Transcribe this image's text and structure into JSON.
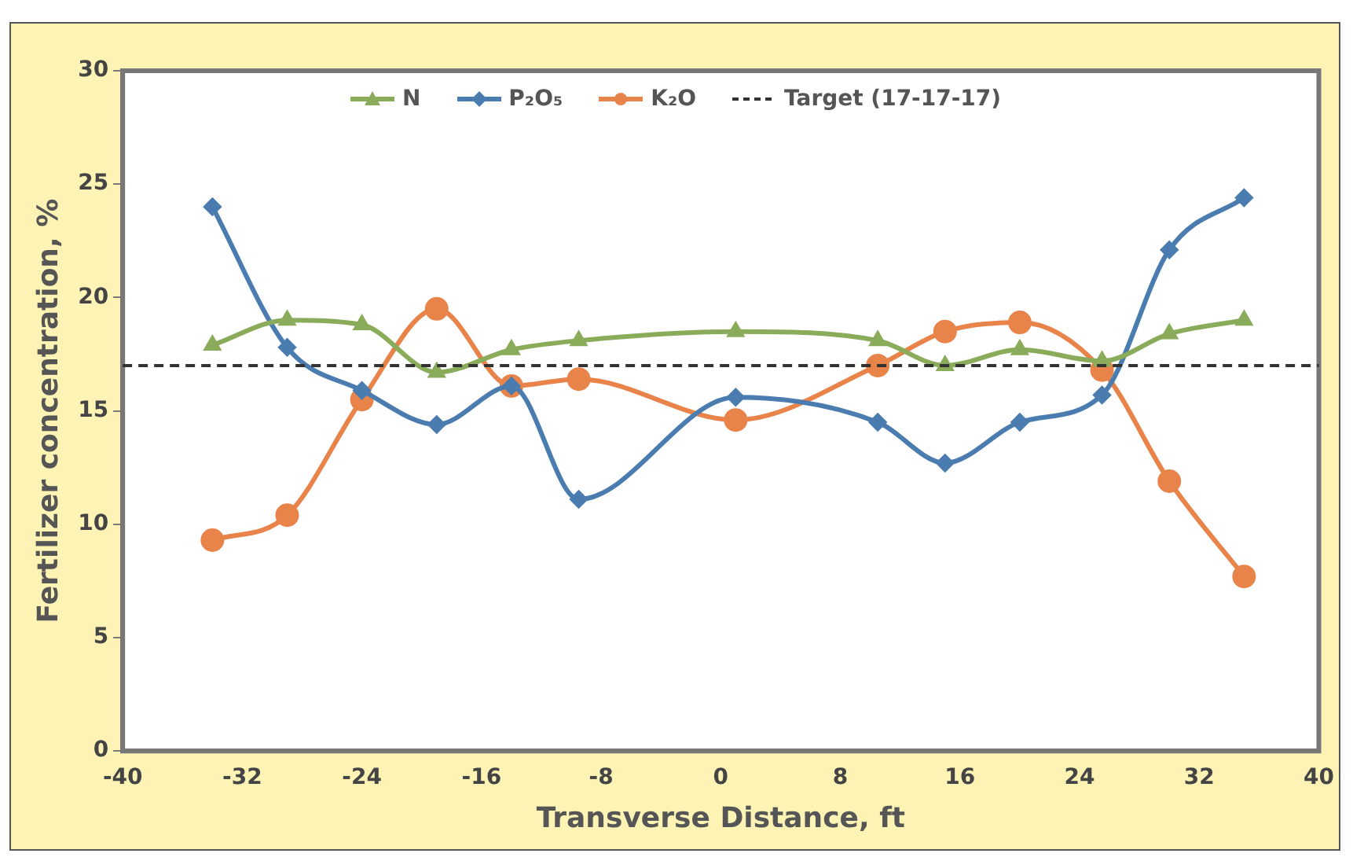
{
  "chart_data": {
    "type": "line",
    "xlabel": "Transverse Distance, ft",
    "ylabel": "Fertilizer concentration, %",
    "xlim": [
      -40,
      40
    ],
    "xticks": [
      -40,
      -32,
      -24,
      -16,
      -8,
      0,
      8,
      16,
      24,
      32,
      40
    ],
    "ylim": [
      0,
      30
    ],
    "yticks": [
      0,
      5,
      10,
      15,
      20,
      25,
      30
    ],
    "x": [
      -34,
      -29,
      -24,
      -19,
      -14,
      -9.5,
      1,
      10.5,
      15,
      20,
      25.5,
      30,
      35
    ],
    "series": [
      {
        "name": "N",
        "color": "#8aab5a",
        "marker": "triangle",
        "values": [
          17.9,
          19.0,
          18.8,
          16.7,
          17.7,
          18.1,
          18.5,
          18.1,
          17.0,
          17.7,
          17.2,
          18.4,
          19.0
        ]
      },
      {
        "name": "P₂O₅",
        "color": "#4a7cb0",
        "marker": "diamond",
        "values": [
          24.0,
          17.8,
          15.9,
          14.4,
          16.1,
          11.1,
          15.6,
          14.5,
          12.7,
          14.5,
          15.7,
          22.1,
          24.4
        ]
      },
      {
        "name": "K₂O",
        "color": "#e8834a",
        "marker": "circle",
        "values": [
          9.3,
          10.4,
          15.5,
          19.5,
          16.1,
          16.4,
          14.6,
          17.0,
          18.5,
          18.9,
          16.8,
          11.9,
          7.7
        ]
      }
    ],
    "ref_lines": [
      {
        "axis": "y",
        "value": 17,
        "label": "Target (17-17-17)",
        "color": "#333333",
        "line_style": "dashed"
      }
    ],
    "legend": "top",
    "grid": false
  }
}
